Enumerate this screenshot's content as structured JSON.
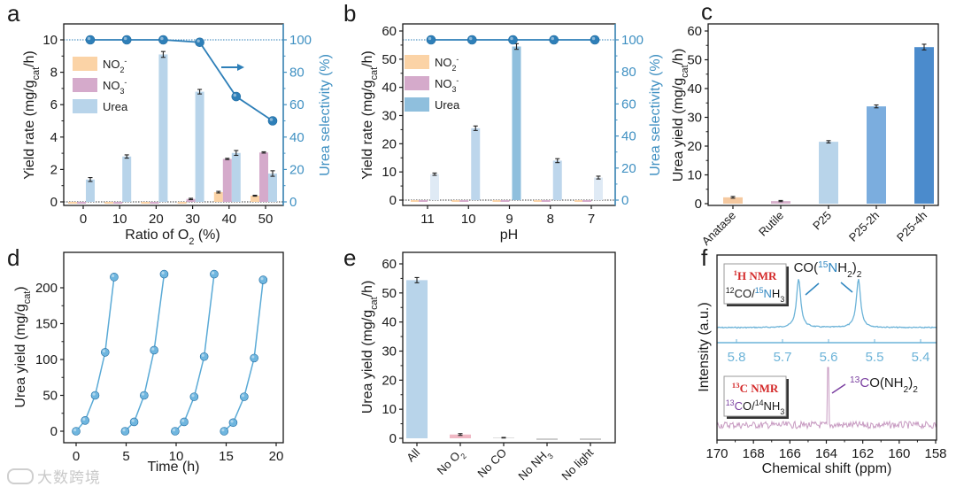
{
  "watermark": "大数跨境",
  "colors": {
    "no2": "#fbd3a6",
    "no3": "#d5aacb",
    "urea": "#b8d4ea",
    "sel": "#2e7fb8",
    "axis_right": "#3f90c2",
    "ink": "#1a1a1a",
    "nmr_red": "#d42a2a",
    "nmr_blue": "#2f86c0",
    "nmr_purple": "#7a3fa0",
    "h_spec": "#6cb3d8",
    "c_spec": "#c79ac1"
  },
  "chart_data": [
    {
      "panel": "a",
      "type": "bar",
      "xlabel": [
        {
          "t": "Ratio of O"
        },
        {
          "t": "2",
          "sub": true
        },
        {
          "t": " (%)"
        }
      ],
      "ylabel": [
        {
          "t": "Yield rate (mg/g"
        },
        {
          "t": "cat",
          "sub": true
        },
        {
          "t": "/h)"
        }
      ],
      "y2label": [
        {
          "t": "Urea selectivity (%)"
        }
      ],
      "x": [
        0,
        10,
        20,
        30,
        40,
        50
      ],
      "xticks": [
        "0",
        "10",
        "20",
        "30",
        "40",
        "50"
      ],
      "yticks": [
        0,
        2,
        4,
        6,
        8,
        10
      ],
      "y2ticks": [
        0,
        20,
        40,
        60,
        80,
        100
      ],
      "ylim": [
        0,
        10
      ],
      "y2lim": [
        0,
        100
      ],
      "series": [
        {
          "name": [
            {
              "t": "NO"
            },
            {
              "t": "2",
              "sub": true
            },
            {
              "t": "-",
              "sup": true
            }
          ],
          "key": "no2",
          "values": [
            0,
            0,
            0,
            0,
            0.6,
            0.38
          ],
          "err": [
            0,
            0,
            0,
            0,
            0.05,
            0.03
          ]
        },
        {
          "name": [
            {
              "t": "NO"
            },
            {
              "t": "3",
              "sub": true
            },
            {
              "t": "-",
              "sup": true
            }
          ],
          "key": "no3",
          "values": [
            0,
            0,
            0,
            0.18,
            2.65,
            3.05
          ],
          "err": [
            0,
            0,
            0,
            0.04,
            0.04,
            0.04
          ]
        },
        {
          "name": [
            {
              "t": "Urea"
            }
          ],
          "key": "urea",
          "values": [
            1.38,
            2.8,
            9.1,
            6.8,
            3.02,
            1.75
          ],
          "err": [
            0.12,
            0.1,
            0.18,
            0.14,
            0.15,
            0.17
          ]
        }
      ],
      "selectivity": {
        "name": "Urea selectivity",
        "axis": "right",
        "values": [
          100,
          100,
          100,
          98.5,
          65,
          50
        ]
      },
      "legend": "top-left",
      "arrow": "right"
    },
    {
      "panel": "b",
      "type": "bar",
      "xlabel": [
        {
          "t": "pH"
        }
      ],
      "ylabel": [
        {
          "t": "Yield rate (mg/g"
        },
        {
          "t": "cat",
          "sub": true
        },
        {
          "t": "/h)"
        }
      ],
      "y2label": [
        {
          "t": "Urea selectivity (%)"
        }
      ],
      "categories": [
        "11",
        "10",
        "9",
        "8",
        "7"
      ],
      "yticks": [
        0,
        10,
        20,
        30,
        40,
        50,
        60
      ],
      "y2ticks": [
        0,
        20,
        40,
        60,
        80,
        100
      ],
      "ylim": [
        0,
        60
      ],
      "y2lim": [
        0,
        100
      ],
      "series": [
        {
          "name": [
            {
              "t": "NO"
            },
            {
              "t": "2",
              "sub": true
            },
            {
              "t": "-",
              "sup": true
            }
          ],
          "key": "no2",
          "values": [
            0,
            0,
            0,
            0,
            0
          ]
        },
        {
          "name": [
            {
              "t": "NO"
            },
            {
              "t": "3",
              "sub": true
            },
            {
              "t": "-",
              "sup": true
            }
          ],
          "key": "no3",
          "values": [
            0,
            0,
            0,
            0,
            0
          ]
        },
        {
          "name": [
            {
              "t": "Urea"
            }
          ],
          "key": "urea",
          "values": [
            9.2,
            25.5,
            54.5,
            14.0,
            8.0
          ],
          "err": [
            0.4,
            0.8,
            1.0,
            0.7,
            0.5
          ],
          "bar_colors": [
            "#dfeaf5",
            "#bdd6ec",
            "#8fbfdd",
            "#bdd6ec",
            "#dfeaf5"
          ]
        }
      ],
      "selectivity": {
        "name": "Urea selectivity",
        "axis": "right",
        "values": [
          100,
          100,
          100,
          100,
          100
        ]
      },
      "legend": "top-left"
    },
    {
      "panel": "c",
      "type": "bar",
      "ylabel": [
        {
          "t": "Urea yield (mg/g"
        },
        {
          "t": "cat",
          "sub": true
        },
        {
          "t": "/h)"
        }
      ],
      "categories": [
        "Anatase",
        "Rutile",
        "P25",
        "P25-2h",
        "P25-4h"
      ],
      "values": [
        2.2,
        0.9,
        21.5,
        33.8,
        54.4
      ],
      "err": [
        0.3,
        0.2,
        0.4,
        0.5,
        1.0
      ],
      "bar_colors": [
        "#f5c9a0",
        "#d8b2cd",
        "#b8d4ea",
        "#7badde",
        "#4b8bcc"
      ],
      "yticks": [
        0,
        10,
        20,
        30,
        40,
        50,
        60
      ],
      "ylim": [
        0,
        60
      ]
    },
    {
      "panel": "d",
      "type": "line",
      "xlabel": [
        {
          "t": "Time (h)"
        }
      ],
      "ylabel": [
        {
          "t": "Urea yield (mg/g"
        },
        {
          "t": "cat",
          "sub": true
        },
        {
          "t": ")"
        }
      ],
      "xticks": [
        0,
        5,
        10,
        15,
        20
      ],
      "yticks": [
        0,
        50,
        100,
        150,
        200
      ],
      "xlim": [
        0,
        20
      ],
      "ylim": [
        0,
        220
      ],
      "cycles": [
        {
          "x": [
            0,
            0.9,
            1.9,
            2.9,
            3.8
          ],
          "y": [
            0,
            15,
            50,
            110,
            215
          ]
        },
        {
          "x": [
            4.9,
            5.8,
            6.8,
            7.8,
            8.8
          ],
          "y": [
            0,
            13,
            50,
            113,
            219
          ]
        },
        {
          "x": [
            9.9,
            10.8,
            11.8,
            12.8,
            13.8
          ],
          "y": [
            0,
            13,
            48,
            104,
            219
          ]
        },
        {
          "x": [
            14.8,
            15.7,
            16.8,
            17.8,
            18.7
          ],
          "y": [
            0,
            12,
            48,
            102,
            211
          ]
        }
      ]
    },
    {
      "panel": "e",
      "type": "bar",
      "ylabel": [
        {
          "t": "Urea yield (mg/g"
        },
        {
          "t": "cat",
          "sub": true
        },
        {
          "t": "/h)"
        }
      ],
      "categories": [
        [
          {
            "t": "All"
          }
        ],
        [
          {
            "t": "No O"
          },
          {
            "t": "2",
            "sub": true
          }
        ],
        [
          {
            "t": "No CO"
          }
        ],
        [
          {
            "t": "No NH"
          },
          {
            "t": "3",
            "sub": true
          }
        ],
        [
          {
            "t": "No light"
          }
        ]
      ],
      "values": [
        54.4,
        1.3,
        0.2,
        0,
        0
      ],
      "err": [
        0.9,
        0.3,
        0.1,
        0,
        0
      ],
      "bar_colors": [
        "#b8d4ea",
        "#f0b8c4",
        "#cccccc",
        "#cccccc",
        "#cccccc"
      ],
      "yticks": [
        0,
        10,
        20,
        30,
        40,
        50,
        60
      ],
      "ylim": [
        0,
        60
      ]
    },
    {
      "panel": "f",
      "type": "line",
      "xlabel": [
        {
          "t": "Chemical shift (ppm)"
        }
      ],
      "ylabel": [
        {
          "t": "Intensity (a.u.)"
        }
      ],
      "xticks": [
        170,
        168,
        166,
        164,
        162,
        160,
        158
      ],
      "xlim": [
        170,
        158
      ],
      "inset_xticks": [
        "5.8",
        "5.7",
        "5.6",
        "5.5",
        "5.4"
      ],
      "h_nmr": {
        "title": [
          {
            "t": "1",
            "sup": true
          },
          {
            "t": "H NMR"
          }
        ],
        "sample": [
          {
            "t": "12",
            "sup": true
          },
          {
            "t": "CO/"
          },
          {
            "t": "15",
            "sup": true,
            "c": "blue"
          },
          {
            "t": "N",
            "c": "blue"
          },
          {
            "t": "H"
          },
          {
            "t": "3",
            "sub": true
          }
        ],
        "peaks_ppm": [
          5.665,
          5.535
        ],
        "annotation": [
          {
            "t": "CO("
          },
          {
            "t": "15",
            "sup": true,
            "c": "blue"
          },
          {
            "t": "N",
            "c": "blue"
          },
          {
            "t": "H"
          },
          {
            "t": "2",
            "sub": true
          },
          {
            "t": ")"
          },
          {
            "t": "2",
            "sub": true
          }
        ]
      },
      "c_nmr": {
        "title": [
          {
            "t": "13",
            "sup": true
          },
          {
            "t": "C NMR"
          }
        ],
        "sample": [
          {
            "t": "13",
            "sup": true,
            "c": "purple"
          },
          {
            "t": "C",
            "c": "purple"
          },
          {
            "t": "O/"
          },
          {
            "t": "14",
            "sup": true
          },
          {
            "t": "NH"
          },
          {
            "t": "3",
            "sub": true
          }
        ],
        "peak_ppm": 163.9,
        "annotation": [
          {
            "t": "13",
            "sup": true,
            "c": "purple"
          },
          {
            "t": "C",
            "c": "purple"
          },
          {
            "t": "O(NH"
          },
          {
            "t": "2",
            "sub": true
          },
          {
            "t": ")"
          },
          {
            "t": "2",
            "sub": true
          }
        ]
      }
    }
  ]
}
